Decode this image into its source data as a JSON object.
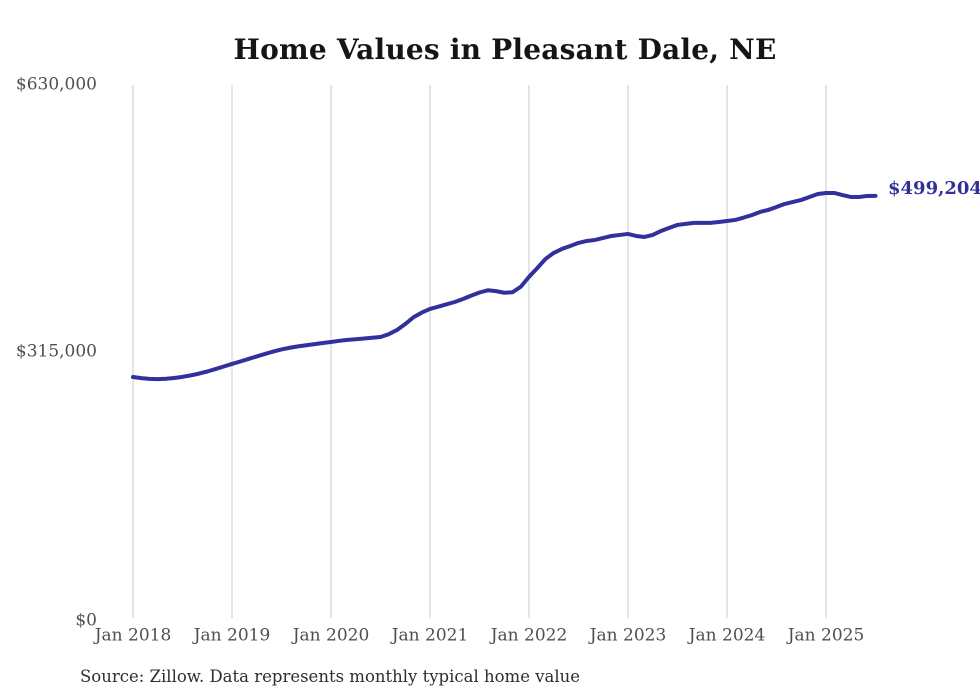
{
  "chart": {
    "title": "Home Values in Pleasant Dale, NE",
    "end_label": "$499,204",
    "source": "Source: Zillow. Data represents monthly typical home value",
    "colors": {
      "line": "#32309d",
      "grid": "#cbcbcb",
      "title_text": "#151515",
      "axis_text": "#4f4f4f",
      "source_text": "#2e2e2e"
    }
  },
  "chart_data": {
    "type": "line",
    "title": "Home Values in Pleasant Dale, NE",
    "frequency": "monthly",
    "x_start": "2018-01",
    "x_end": "2025-07",
    "xlabel": "",
    "ylabel": "",
    "ylim": [
      0,
      630000
    ],
    "grid": "vertical-only",
    "legend": "none",
    "end_annotation": "$499,204",
    "x_ticks": [
      {
        "label": "Jan 2018",
        "month_index": 0
      },
      {
        "label": "Jan 2019",
        "month_index": 12
      },
      {
        "label": "Jan 2020",
        "month_index": 24
      },
      {
        "label": "Jan 2021",
        "month_index": 36
      },
      {
        "label": "Jan 2022",
        "month_index": 48
      },
      {
        "label": "Jan 2023",
        "month_index": 60
      },
      {
        "label": "Jan 2024",
        "month_index": 72
      },
      {
        "label": "Jan 2025",
        "month_index": 84
      }
    ],
    "y_ticks": [
      {
        "label": "$0",
        "value": 0
      },
      {
        "label": "$315,000",
        "value": 315000
      },
      {
        "label": "$630,000",
        "value": 630000
      }
    ],
    "series": [
      {
        "name": "Typical home value",
        "values": [
          285500,
          284200,
          283300,
          283000,
          283400,
          284300,
          285700,
          287400,
          289500,
          292000,
          294900,
          297900,
          300900,
          303800,
          306800,
          309800,
          312700,
          315500,
          318000,
          320000,
          321600,
          323000,
          324300,
          325600,
          326800,
          328200,
          329300,
          330100,
          330900,
          331800,
          332700,
          336000,
          341000,
          348000,
          356000,
          361500,
          365800,
          368500,
          371200,
          374000,
          377500,
          381500,
          385200,
          387800,
          386800,
          384900,
          385500,
          392000,
          403600,
          414000,
          424800,
          431900,
          436600,
          440100,
          443700,
          446000,
          447200,
          449600,
          451900,
          453100,
          454300,
          451900,
          450700,
          453100,
          457800,
          461400,
          464900,
          466100,
          467300,
          467300,
          467300,
          468400,
          469600,
          470800,
          473500,
          476500,
          480200,
          482600,
          486100,
          489700,
          492000,
          494400,
          497900,
          501400,
          502600,
          502600,
          500200,
          497900,
          497900,
          499100,
          499204
        ]
      }
    ]
  }
}
